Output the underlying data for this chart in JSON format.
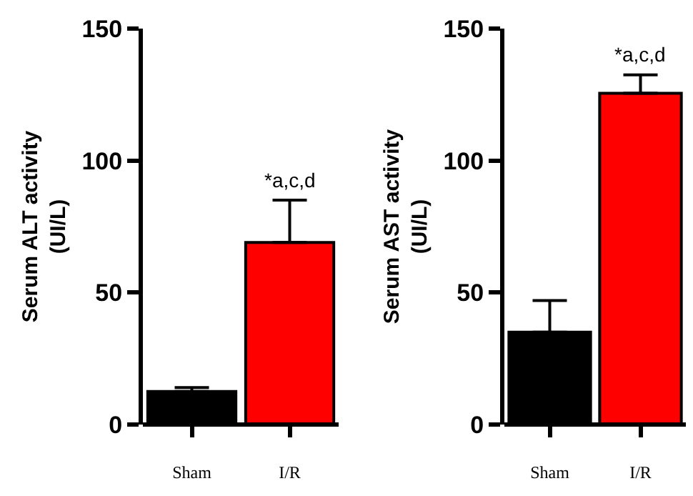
{
  "chart_data": [
    {
      "type": "bar",
      "ylabel": "Serum ALT activity\n(UI/L)",
      "categories": [
        "Sham",
        "I/R"
      ],
      "values": [
        12.5,
        69
      ],
      "colors": [
        "#000000",
        "#ff0000"
      ],
      "errors": [
        [
          12.5,
          14
        ],
        [
          69,
          85
        ]
      ],
      "ylim": [
        0,
        150
      ],
      "yticks": [
        0,
        50,
        100,
        150
      ],
      "annotations": [
        {
          "text": "*a,c,d",
          "x": "I/R",
          "y": 85
        }
      ]
    },
    {
      "type": "bar",
      "ylabel": "Serum AST activity\n(UI/L)",
      "categories": [
        "Sham",
        "I/R"
      ],
      "values": [
        35,
        125.5
      ],
      "colors": [
        "#000000",
        "#ff0000"
      ],
      "errors": [
        [
          35,
          47
        ],
        [
          125.5,
          132.5
        ]
      ],
      "ylim": [
        0,
        150
      ],
      "yticks": [
        0,
        50,
        100,
        150
      ],
      "annotations": [
        {
          "text": "*a,c,d",
          "x": "I/R",
          "y": 132.5
        }
      ]
    }
  ]
}
